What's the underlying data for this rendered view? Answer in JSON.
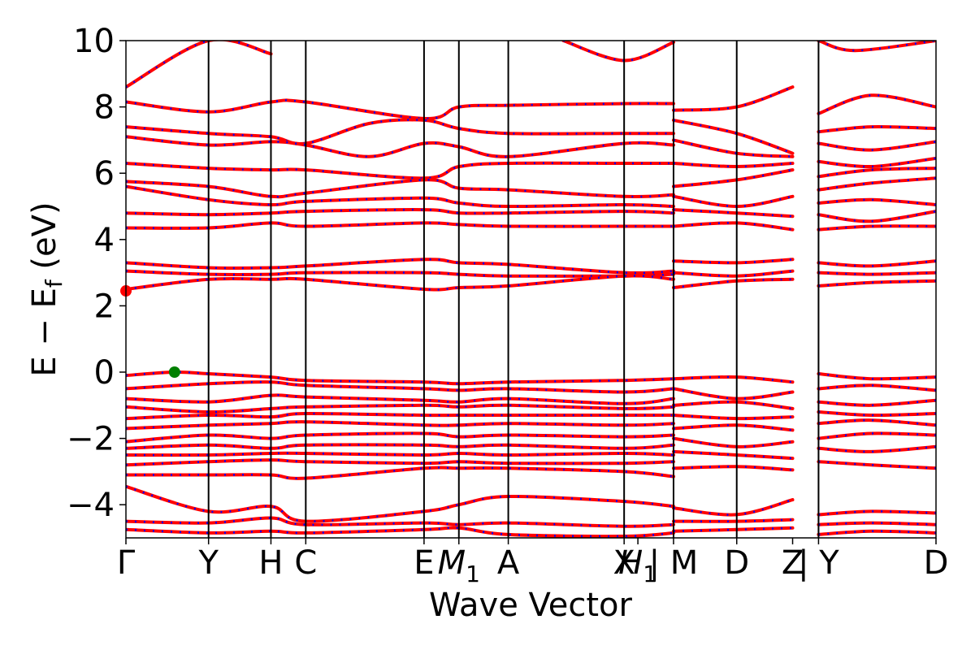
{
  "chart_data": {
    "type": "line",
    "title": "",
    "xlabel": "Wave Vector",
    "ylabel_parts": {
      "main": "E − E",
      "sub": "f",
      "unit": " (eV)"
    },
    "ylim": [
      -5,
      10
    ],
    "y_ticks": [
      -4,
      -2,
      0,
      2,
      4,
      6,
      8,
      10
    ],
    "y_tick_labels": [
      "−4",
      "−2",
      "0",
      "2",
      "4",
      "6",
      "8",
      "10"
    ],
    "x_range": [
      0,
      100
    ],
    "kpath_labels": [
      {
        "x": 0.0,
        "label": "Γ"
      },
      {
        "x": 10.2,
        "label": "Y"
      },
      {
        "x": 17.9,
        "label": "H"
      },
      {
        "x": 22.2,
        "label": "C"
      },
      {
        "x": 36.8,
        "label": "E"
      },
      {
        "x": 41.1,
        "label": "M",
        "sub": "1"
      },
      {
        "x": 47.2,
        "label": "A"
      },
      {
        "x": 61.5,
        "label": "X"
      },
      {
        "x": 63.2,
        "label": "H",
        "sub": "1"
      },
      {
        "x": 67.6,
        "label": "| M"
      },
      {
        "x": 75.4,
        "label": "D"
      },
      {
        "x": 82.3,
        "label": "Z"
      },
      {
        "x": 85.5,
        "label": "| Y"
      },
      {
        "x": 100.0,
        "label": "D"
      }
    ],
    "kpath_lines_x": [
      10.2,
      17.9,
      22.2,
      36.8,
      41.1,
      47.2,
      61.5,
      67.6,
      75.4,
      85.5
    ],
    "series_style": {
      "up": {
        "color": "#ff0000",
        "style": "solid"
      },
      "down": {
        "color": "#0000ff",
        "style": "dotted"
      }
    },
    "markers": [
      {
        "name": "cbm",
        "x": 0.0,
        "y": 2.45,
        "color": "#ff0000"
      },
      {
        "name": "vbm",
        "x": 6.0,
        "y": 0.0,
        "color": "#008000"
      }
    ],
    "bands": [
      {
        "x": [
          0,
          10.2,
          17.9
        ],
        "y": [
          8.6,
          10.0,
          9.6
        ]
      },
      {
        "x": [
          0,
          10.2,
          17.9,
          22.2,
          36.8,
          41.1,
          47.2,
          61.5,
          67.6
        ],
        "y": [
          8.15,
          7.85,
          8.15,
          8.15,
          7.65,
          8.0,
          8.05,
          8.1,
          8.1
        ]
      },
      {
        "x": [
          0,
          10.2,
          17.9,
          22.2,
          30.0,
          36.8,
          41.1,
          47.2,
          61.5,
          67.6
        ],
        "y": [
          7.4,
          7.2,
          7.1,
          6.9,
          7.5,
          7.6,
          7.35,
          7.2,
          7.2,
          7.2
        ]
      },
      {
        "x": [
          0,
          10.2,
          17.9,
          22.2,
          30.0,
          36.8,
          41.1,
          47.2,
          61.5,
          67.6
        ],
        "y": [
          7.1,
          6.85,
          6.95,
          6.85,
          6.5,
          6.9,
          6.8,
          6.5,
          6.9,
          6.85
        ]
      },
      {
        "x": [
          0,
          10.2,
          17.9,
          22.2,
          36.8,
          41.1,
          47.2,
          61.5,
          67.6
        ],
        "y": [
          6.3,
          6.15,
          6.1,
          6.1,
          5.85,
          6.2,
          6.3,
          6.3,
          6.3
        ]
      },
      {
        "x": [
          0,
          10.2,
          17.9,
          22.2,
          36.8,
          41.1,
          47.2,
          61.5,
          67.6
        ],
        "y": [
          5.75,
          5.6,
          5.3,
          5.4,
          5.8,
          5.55,
          5.5,
          5.3,
          5.35
        ]
      },
      {
        "x": [
          0,
          10.2,
          17.9,
          22.2,
          36.8,
          41.1,
          47.2,
          61.5,
          67.6
        ],
        "y": [
          5.6,
          5.2,
          5.05,
          5.15,
          5.25,
          5.1,
          5.0,
          5.05,
          5.0
        ]
      },
      {
        "x": [
          0,
          10.2,
          17.9,
          22.2,
          36.8,
          41.1,
          47.2,
          61.5,
          67.6
        ],
        "y": [
          4.8,
          4.75,
          4.8,
          4.85,
          4.9,
          4.8,
          4.8,
          4.85,
          4.8
        ]
      },
      {
        "x": [
          0,
          10.2,
          17.9,
          22.2,
          36.8,
          41.1,
          47.2,
          61.5,
          67.6
        ],
        "y": [
          4.35,
          4.35,
          4.5,
          4.4,
          4.5,
          4.45,
          4.4,
          4.4,
          4.4
        ]
      },
      {
        "x": [
          0,
          10.2,
          17.9,
          22.2,
          36.8,
          41.1,
          47.2,
          61.5,
          67.6
        ],
        "y": [
          3.3,
          3.15,
          3.15,
          3.2,
          3.4,
          3.3,
          3.25,
          3.0,
          3.05
        ]
      },
      {
        "x": [
          0,
          10.2,
          17.9,
          22.2,
          36.8,
          41.1,
          47.2,
          61.5,
          67.6
        ],
        "y": [
          3.05,
          2.95,
          2.95,
          3.0,
          3.0,
          2.95,
          2.9,
          2.9,
          2.95
        ]
      },
      {
        "x": [
          0,
          10.2,
          17.9,
          22.2,
          36.8,
          41.1,
          47.2,
          61.5,
          67.6
        ],
        "y": [
          2.5,
          2.8,
          2.8,
          2.8,
          2.5,
          2.55,
          2.6,
          2.9,
          2.8
        ]
      },
      {
        "x": [
          0,
          6.0,
          10.2,
          17.9,
          22.2,
          36.8,
          41.1,
          47.2,
          61.5,
          67.6
        ],
        "y": [
          -0.1,
          0.0,
          -0.05,
          -0.15,
          -0.25,
          -0.3,
          -0.35,
          -0.3,
          -0.25,
          -0.2
        ]
      },
      {
        "x": [
          0,
          10.2,
          17.9,
          22.2,
          36.8,
          41.1,
          47.2,
          61.5,
          67.6
        ],
        "y": [
          -0.5,
          -0.35,
          -0.3,
          -0.4,
          -0.5,
          -0.55,
          -0.5,
          -0.6,
          -0.5
        ]
      },
      {
        "x": [
          0,
          10.2,
          17.9,
          22.2,
          36.8,
          41.1,
          47.2,
          61.5,
          67.6
        ],
        "y": [
          -0.8,
          -0.9,
          -0.7,
          -0.75,
          -0.85,
          -0.9,
          -0.8,
          -0.95,
          -0.8
        ]
      },
      {
        "x": [
          0,
          10.2,
          17.9,
          22.2,
          36.8,
          41.1,
          47.2,
          61.5,
          67.6
        ],
        "y": [
          -1.05,
          -1.2,
          -1.1,
          -1.05,
          -1.0,
          -1.05,
          -1.0,
          -1.1,
          -1.05
        ]
      },
      {
        "x": [
          0,
          10.2,
          17.9,
          22.2,
          36.8,
          41.1,
          47.2,
          61.5,
          67.6
        ],
        "y": [
          -1.4,
          -1.3,
          -1.35,
          -1.25,
          -1.3,
          -1.3,
          -1.3,
          -1.3,
          -1.3
        ]
      },
      {
        "x": [
          0,
          10.2,
          17.9,
          22.2,
          36.8,
          41.1,
          47.2,
          61.5,
          67.6
        ],
        "y": [
          -1.7,
          -1.6,
          -1.55,
          -1.5,
          -1.6,
          -1.6,
          -1.55,
          -1.6,
          -1.55
        ]
      },
      {
        "x": [
          0,
          10.2,
          17.9,
          22.2,
          36.8,
          41.1,
          47.2,
          61.5,
          67.6
        ],
        "y": [
          -2.1,
          -1.9,
          -2.0,
          -1.9,
          -1.85,
          -1.95,
          -1.9,
          -1.95,
          -1.9
        ]
      },
      {
        "x": [
          0,
          10.2,
          17.9,
          22.2,
          36.8,
          41.1,
          47.2,
          61.5,
          67.6
        ],
        "y": [
          -2.3,
          -2.2,
          -2.3,
          -2.2,
          -2.2,
          -2.25,
          -2.2,
          -2.3,
          -2.2
        ]
      },
      {
        "x": [
          0,
          10.2,
          17.9,
          22.2,
          36.8,
          41.1,
          47.2,
          61.5,
          67.6
        ],
        "y": [
          -2.5,
          -2.5,
          -2.45,
          -2.45,
          -2.5,
          -2.45,
          -2.5,
          -2.45,
          -2.5
        ]
      },
      {
        "x": [
          0,
          10.2,
          17.9,
          22.2,
          36.8,
          41.1,
          47.2,
          61.5,
          67.6
        ],
        "y": [
          -2.8,
          -2.7,
          -2.65,
          -2.7,
          -2.75,
          -2.7,
          -2.75,
          -2.75,
          -2.7
        ]
      },
      {
        "x": [
          0,
          10.2,
          17.9,
          22.2,
          36.8,
          41.1,
          47.2,
          61.5,
          67.6
        ],
        "y": [
          -3.1,
          -3.1,
          -3.1,
          -3.2,
          -2.9,
          -2.9,
          -2.9,
          -3.0,
          -3.15
        ]
      },
      {
        "x": [
          0,
          10.2,
          17.9,
          22.2,
          36.8,
          41.1,
          47.2,
          61.5,
          67.6
        ],
        "y": [
          -3.45,
          -4.2,
          -4.05,
          -4.5,
          -4.2,
          -4.0,
          -3.75,
          -3.9,
          -4.05
        ]
      },
      {
        "x": [
          0,
          10.2,
          17.9,
          22.2,
          36.8,
          41.1,
          47.2,
          61.5,
          67.6
        ],
        "y": [
          -4.5,
          -4.55,
          -4.4,
          -4.6,
          -4.55,
          -4.6,
          -4.55,
          -4.65,
          -4.6
        ]
      },
      {
        "x": [
          0,
          10.2,
          17.9,
          22.2,
          36.8,
          41.1,
          47.2,
          61.5,
          67.6
        ],
        "y": [
          -4.75,
          -4.85,
          -4.8,
          -4.85,
          -4.75,
          -4.7,
          -4.9,
          -4.95,
          -4.85
        ]
      },
      {
        "x": [
          54.0,
          61.5,
          67.6
        ],
        "y": [
          10.0,
          9.4,
          9.95
        ]
      },
      {
        "x": [
          67.6,
          75.4,
          82.3
        ],
        "y": [
          7.9,
          8.0,
          8.6
        ]
      },
      {
        "x": [
          67.6,
          75.4,
          82.3
        ],
        "y": [
          7.6,
          7.2,
          6.6
        ]
      },
      {
        "x": [
          67.6,
          75.4,
          82.3
        ],
        "y": [
          7.0,
          6.6,
          6.5
        ]
      },
      {
        "x": [
          67.6,
          75.4,
          82.3
        ],
        "y": [
          6.3,
          6.2,
          6.3
        ]
      },
      {
        "x": [
          67.6,
          75.4,
          82.3
        ],
        "y": [
          5.6,
          5.8,
          6.1
        ]
      },
      {
        "x": [
          67.6,
          75.4,
          82.3
        ],
        "y": [
          5.3,
          5.0,
          5.3
        ]
      },
      {
        "x": [
          67.6,
          75.4,
          82.3
        ],
        "y": [
          4.9,
          4.8,
          4.7
        ]
      },
      {
        "x": [
          67.6,
          75.4,
          82.3
        ],
        "y": [
          4.4,
          4.5,
          4.3
        ]
      },
      {
        "x": [
          67.6,
          75.4,
          82.3
        ],
        "y": [
          3.35,
          3.3,
          3.4
        ]
      },
      {
        "x": [
          67.6,
          75.4,
          82.3
        ],
        "y": [
          3.0,
          2.9,
          3.05
        ]
      },
      {
        "x": [
          67.6,
          75.4,
          82.3
        ],
        "y": [
          2.55,
          2.75,
          2.8
        ]
      },
      {
        "x": [
          67.6,
          75.4,
          82.3
        ],
        "y": [
          -0.2,
          -0.15,
          -0.3
        ]
      },
      {
        "x": [
          67.6,
          75.4,
          82.3
        ],
        "y": [
          -0.5,
          -0.8,
          -0.6
        ]
      },
      {
        "x": [
          67.6,
          75.4,
          82.3
        ],
        "y": [
          -1.0,
          -0.9,
          -1.1
        ]
      },
      {
        "x": [
          67.6,
          75.4,
          82.3
        ],
        "y": [
          -1.3,
          -1.4,
          -1.35
        ]
      },
      {
        "x": [
          67.6,
          75.4,
          82.3
        ],
        "y": [
          -1.7,
          -1.6,
          -1.75
        ]
      },
      {
        "x": [
          67.6,
          75.4,
          82.3
        ],
        "y": [
          -2.0,
          -2.25,
          -2.1
        ]
      },
      {
        "x": [
          67.6,
          75.4,
          82.3
        ],
        "y": [
          -2.4,
          -2.5,
          -2.6
        ]
      },
      {
        "x": [
          67.6,
          75.4,
          82.3
        ],
        "y": [
          -2.9,
          -2.85,
          -2.95
        ]
      },
      {
        "x": [
          67.6,
          75.4,
          82.3
        ],
        "y": [
          -4.1,
          -4.3,
          -3.85
        ]
      },
      {
        "x": [
          67.6,
          75.4,
          82.3
        ],
        "y": [
          -4.5,
          -4.5,
          -4.45
        ]
      },
      {
        "x": [
          67.6,
          75.4,
          82.3
        ],
        "y": [
          -4.8,
          -4.75,
          -4.7
        ]
      },
      {
        "x": [
          85.5,
          90.0,
          100.0
        ],
        "y": [
          10.0,
          9.7,
          10.0
        ]
      },
      {
        "x": [
          85.5,
          92.0,
          100.0
        ],
        "y": [
          7.8,
          8.35,
          8.0
        ]
      },
      {
        "x": [
          85.5,
          92.0,
          100.0
        ],
        "y": [
          7.25,
          7.4,
          7.35
        ]
      },
      {
        "x": [
          85.5,
          92.0,
          100.0
        ],
        "y": [
          6.9,
          6.7,
          6.95
        ]
      },
      {
        "x": [
          85.5,
          92.0,
          100.0
        ],
        "y": [
          6.35,
          6.2,
          6.45
        ]
      },
      {
        "x": [
          85.5,
          92.0,
          100.0
        ],
        "y": [
          5.9,
          6.1,
          6.15
        ]
      },
      {
        "x": [
          85.5,
          92.0,
          100.0
        ],
        "y": [
          5.5,
          5.7,
          5.85
        ]
      },
      {
        "x": [
          85.5,
          92.0,
          100.0
        ],
        "y": [
          5.1,
          5.2,
          5.05
        ]
      },
      {
        "x": [
          85.5,
          92.0,
          100.0
        ],
        "y": [
          4.75,
          4.55,
          4.85
        ]
      },
      {
        "x": [
          85.5,
          92.0,
          100.0
        ],
        "y": [
          4.3,
          4.4,
          4.4
        ]
      },
      {
        "x": [
          85.5,
          92.0,
          100.0
        ],
        "y": [
          3.3,
          3.2,
          3.35
        ]
      },
      {
        "x": [
          85.5,
          92.0,
          100.0
        ],
        "y": [
          3.0,
          2.95,
          3.0
        ]
      },
      {
        "x": [
          85.5,
          92.0,
          100.0
        ],
        "y": [
          2.6,
          2.7,
          2.75
        ]
      },
      {
        "x": [
          85.5,
          92.0,
          100.0
        ],
        "y": [
          -0.05,
          -0.2,
          -0.15
        ]
      },
      {
        "x": [
          85.5,
          92.0,
          100.0
        ],
        "y": [
          -0.5,
          -0.4,
          -0.55
        ]
      },
      {
        "x": [
          85.5,
          92.0,
          100.0
        ],
        "y": [
          -0.9,
          -1.0,
          -0.85
        ]
      },
      {
        "x": [
          85.5,
          92.0,
          100.0
        ],
        "y": [
          -1.2,
          -1.3,
          -1.25
        ]
      },
      {
        "x": [
          85.5,
          92.0,
          100.0
        ],
        "y": [
          -1.55,
          -1.45,
          -1.6
        ]
      },
      {
        "x": [
          85.5,
          92.0,
          100.0
        ],
        "y": [
          -2.0,
          -1.85,
          -1.9
        ]
      },
      {
        "x": [
          85.5,
          92.0,
          100.0
        ],
        "y": [
          -2.3,
          -2.4,
          -2.25
        ]
      },
      {
        "x": [
          85.5,
          92.0,
          100.0
        ],
        "y": [
          -2.7,
          -2.8,
          -2.9
        ]
      },
      {
        "x": [
          85.5,
          92.0,
          100.0
        ],
        "y": [
          -4.3,
          -4.2,
          -4.25
        ]
      },
      {
        "x": [
          85.5,
          92.0,
          100.0
        ],
        "y": [
          -4.6,
          -4.55,
          -4.6
        ]
      },
      {
        "x": [
          85.5,
          92.0,
          100.0
        ],
        "y": [
          -4.9,
          -4.8,
          -4.85
        ]
      }
    ]
  }
}
